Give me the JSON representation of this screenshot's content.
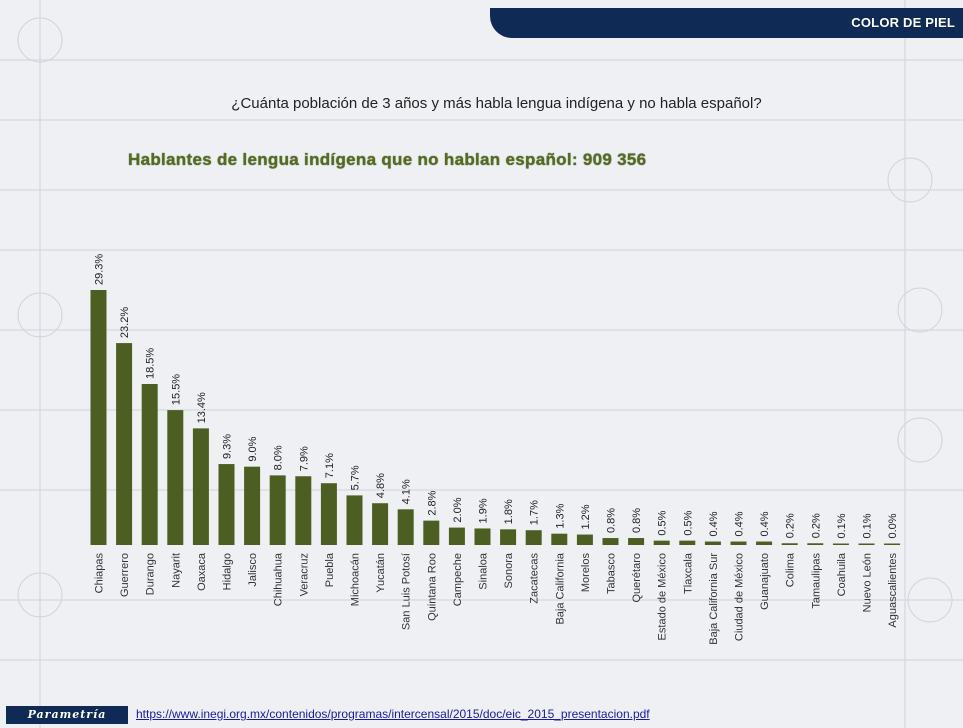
{
  "header": {
    "title": "COLOR DE PIEL"
  },
  "question": "¿Cuánta población de 3 años y más habla lengua indígena y no habla español?",
  "subtitle": "Hablantes de lengua indígena que no hablan español: 909 356",
  "footer": {
    "logo": "Parametría",
    "link": "https://www.inegi.org.mx/contenidos/programas/intercensal/2015/doc/eic_2015_presentacion.pdf"
  },
  "colors": {
    "bar": "#4d5e23",
    "header": "#0e2a55",
    "subtitle": "#556b1f"
  },
  "chart_data": {
    "type": "bar",
    "categories": [
      "Chiapas",
      "Guerrero",
      "Durango",
      "Nayarit",
      "Oaxaca",
      "Hidalgo",
      "Jalisco",
      "Chihuahua",
      "Veracruz",
      "Puebla",
      "Michoacán",
      "Yucatán",
      "San Luis Potosí",
      "Quintana Roo",
      "Campeche",
      "Sinaloa",
      "Sonora",
      "Zacatecas",
      "Baja California",
      "Morelos",
      "Tabasco",
      "Querétaro",
      "Estado de México",
      "Tlaxcala",
      "Baja California Sur",
      "Ciudad de México",
      "Guanajuato",
      "Colima",
      "Tamaulipas",
      "Coahuila",
      "Nuevo León",
      "Aguascalientes"
    ],
    "values": [
      29.3,
      23.2,
      18.5,
      15.5,
      13.4,
      9.3,
      9.0,
      8.0,
      7.9,
      7.1,
      5.7,
      4.8,
      4.1,
      2.8,
      2.0,
      1.9,
      1.8,
      1.7,
      1.3,
      1.2,
      0.8,
      0.8,
      0.5,
      0.5,
      0.4,
      0.4,
      0.4,
      0.2,
      0.2,
      0.1,
      0.1,
      0.0
    ],
    "labels": [
      "29.3%",
      "23.2%",
      "18.5%",
      "15.5%",
      "13.4%",
      "9.3%",
      "9.0%",
      "8.0%",
      "7.9%",
      "7.1%",
      "5.7%",
      "4.8%",
      "4.1%",
      "2.8%",
      "2.0%",
      "1.9%",
      "1.8%",
      "1.7%",
      "1.3%",
      "1.2%",
      "0.8%",
      "0.8%",
      "0.5%",
      "0.5%",
      "0.4%",
      "0.4%",
      "0.4%",
      "0.2%",
      "0.2%",
      "0.1%",
      "0.1%",
      "0.0%"
    ],
    "title": "",
    "xlabel": "",
    "ylabel": "",
    "ylim": [
      0,
      30
    ],
    "grid": false,
    "legend": "none"
  }
}
